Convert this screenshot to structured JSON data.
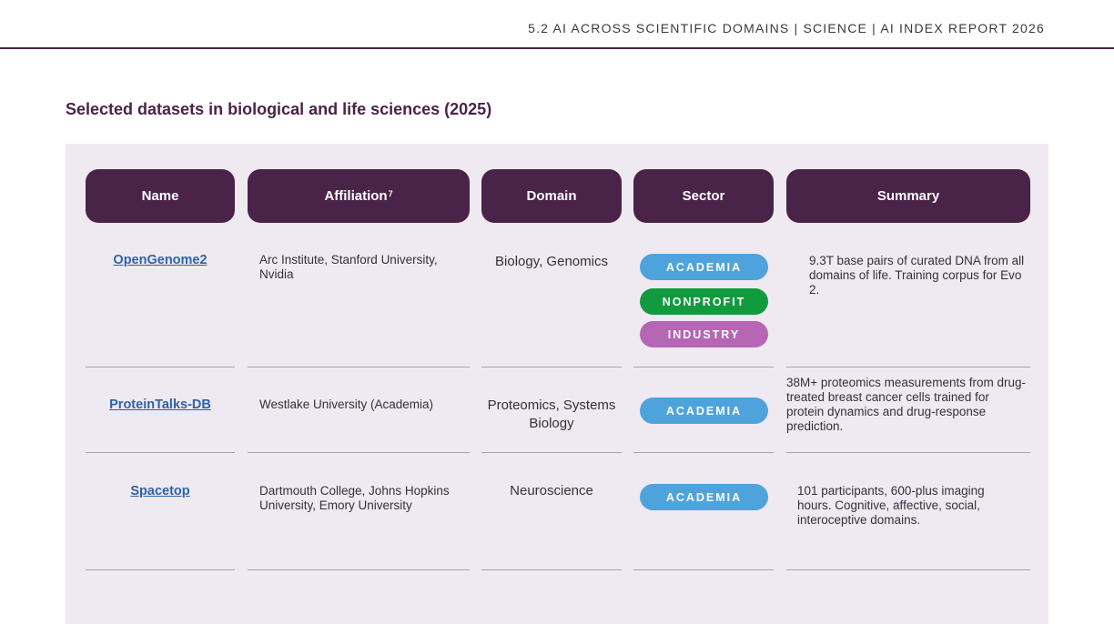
{
  "header": {
    "running_title": "5.2 AI ACROSS SCIENTIFIC DOMAINS  |  SCIENCE  |  AI INDEX REPORT 2026"
  },
  "figure": {
    "title": "Selected datasets in biological and life sciences (2025)"
  },
  "table": {
    "columns": {
      "name": "Name",
      "affiliation": "Affiliation",
      "affiliation_footnote": "7",
      "domain": "Domain",
      "sector": "Sector",
      "summary": "Summary"
    },
    "rows": [
      {
        "name": "OpenGenome2",
        "affiliation": "Arc Institute, Stanford University, Nvidia",
        "domain": "Biology, Genomics",
        "sectors": [
          "ACADEMIA",
          "NONPROFIT",
          "INDUSTRY"
        ],
        "summary": "9.3T base pairs of curated DNA from all domains of life. Training corpus for Evo 2."
      },
      {
        "name": "ProteinTalks-DB",
        "affiliation": "Westlake University (Academia)",
        "domain": "Proteomics, Systems Biology",
        "sectors": [
          "ACADEMIA"
        ],
        "summary": "38M+ proteomics measurements from drug-treated breast cancer cells trained for protein dynamics and drug-response prediction."
      },
      {
        "name": "Spacetop",
        "affiliation": "Dartmouth College, Johns Hopkins University, Emory University",
        "domain": "Neuroscience",
        "sectors": [
          "ACADEMIA"
        ],
        "summary": "101 participants, 600-plus imaging hours. Cognitive, affective, social, interoceptive domains."
      }
    ]
  },
  "colors": {
    "header_fill": "#4a2348",
    "panel_background": "#efe9f1",
    "link": "#2f63a9",
    "academia": "#4fa3dc",
    "nonprofit": "#129a3f",
    "industry": "#b566b5"
  }
}
